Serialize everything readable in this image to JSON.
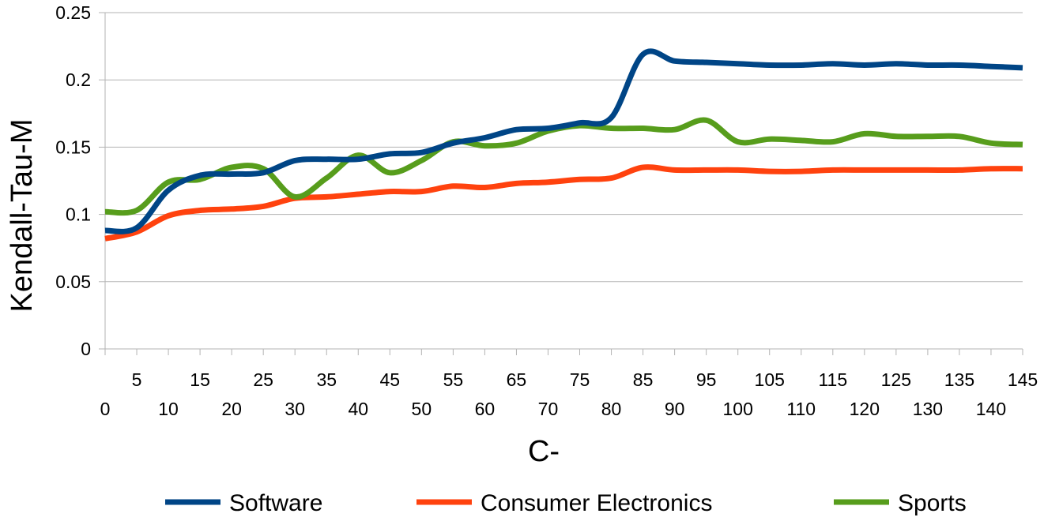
{
  "chart_data": {
    "type": "line",
    "title": "",
    "xlabel": "C-",
    "ylabel": "Kendall-Tau-M",
    "x": [
      0,
      5,
      10,
      15,
      20,
      25,
      30,
      35,
      40,
      45,
      50,
      55,
      60,
      65,
      70,
      75,
      80,
      85,
      90,
      95,
      100,
      105,
      110,
      115,
      120,
      125,
      130,
      135,
      140,
      145
    ],
    "xlim": [
      0,
      145
    ],
    "ylim": [
      0,
      0.25
    ],
    "y_ticks": [
      "0",
      "0.05",
      "0.1",
      "0.15",
      "0.2",
      "0.25"
    ],
    "x_ticks_upper": [
      "5",
      "15",
      "25",
      "35",
      "45",
      "55",
      "65",
      "75",
      "85",
      "95",
      "105",
      "115",
      "125",
      "135",
      "145"
    ],
    "x_ticks_lower": [
      "0",
      "10",
      "20",
      "30",
      "40",
      "50",
      "60",
      "70",
      "80",
      "90",
      "100",
      "110",
      "120",
      "130",
      "140"
    ],
    "grid": "horizontal",
    "legend_position": "bottom",
    "series": [
      {
        "name": "Software",
        "color": "#004586",
        "values": [
          0.088,
          0.09,
          0.118,
          0.129,
          0.13,
          0.131,
          0.14,
          0.141,
          0.141,
          0.145,
          0.146,
          0.153,
          0.157,
          0.163,
          0.164,
          0.168,
          0.172,
          0.219,
          0.214,
          0.213,
          0.212,
          0.211,
          0.211,
          0.212,
          0.211,
          0.212,
          0.211,
          0.211,
          0.21,
          0.209
        ]
      },
      {
        "name": "Consumer Electronics",
        "color": "#ff420e",
        "values": [
          0.082,
          0.087,
          0.099,
          0.103,
          0.104,
          0.106,
          0.112,
          0.113,
          0.115,
          0.117,
          0.117,
          0.121,
          0.12,
          0.123,
          0.124,
          0.126,
          0.127,
          0.135,
          0.133,
          0.133,
          0.133,
          0.132,
          0.132,
          0.133,
          0.133,
          0.133,
          0.133,
          0.133,
          0.134,
          0.134
        ]
      },
      {
        "name": "Sports",
        "color": "#579d1c",
        "values": [
          0.102,
          0.103,
          0.124,
          0.126,
          0.135,
          0.134,
          0.113,
          0.127,
          0.144,
          0.131,
          0.14,
          0.154,
          0.151,
          0.153,
          0.162,
          0.166,
          0.164,
          0.164,
          0.163,
          0.17,
          0.154,
          0.156,
          0.155,
          0.154,
          0.16,
          0.158,
          0.158,
          0.158,
          0.153,
          0.152
        ]
      }
    ]
  }
}
